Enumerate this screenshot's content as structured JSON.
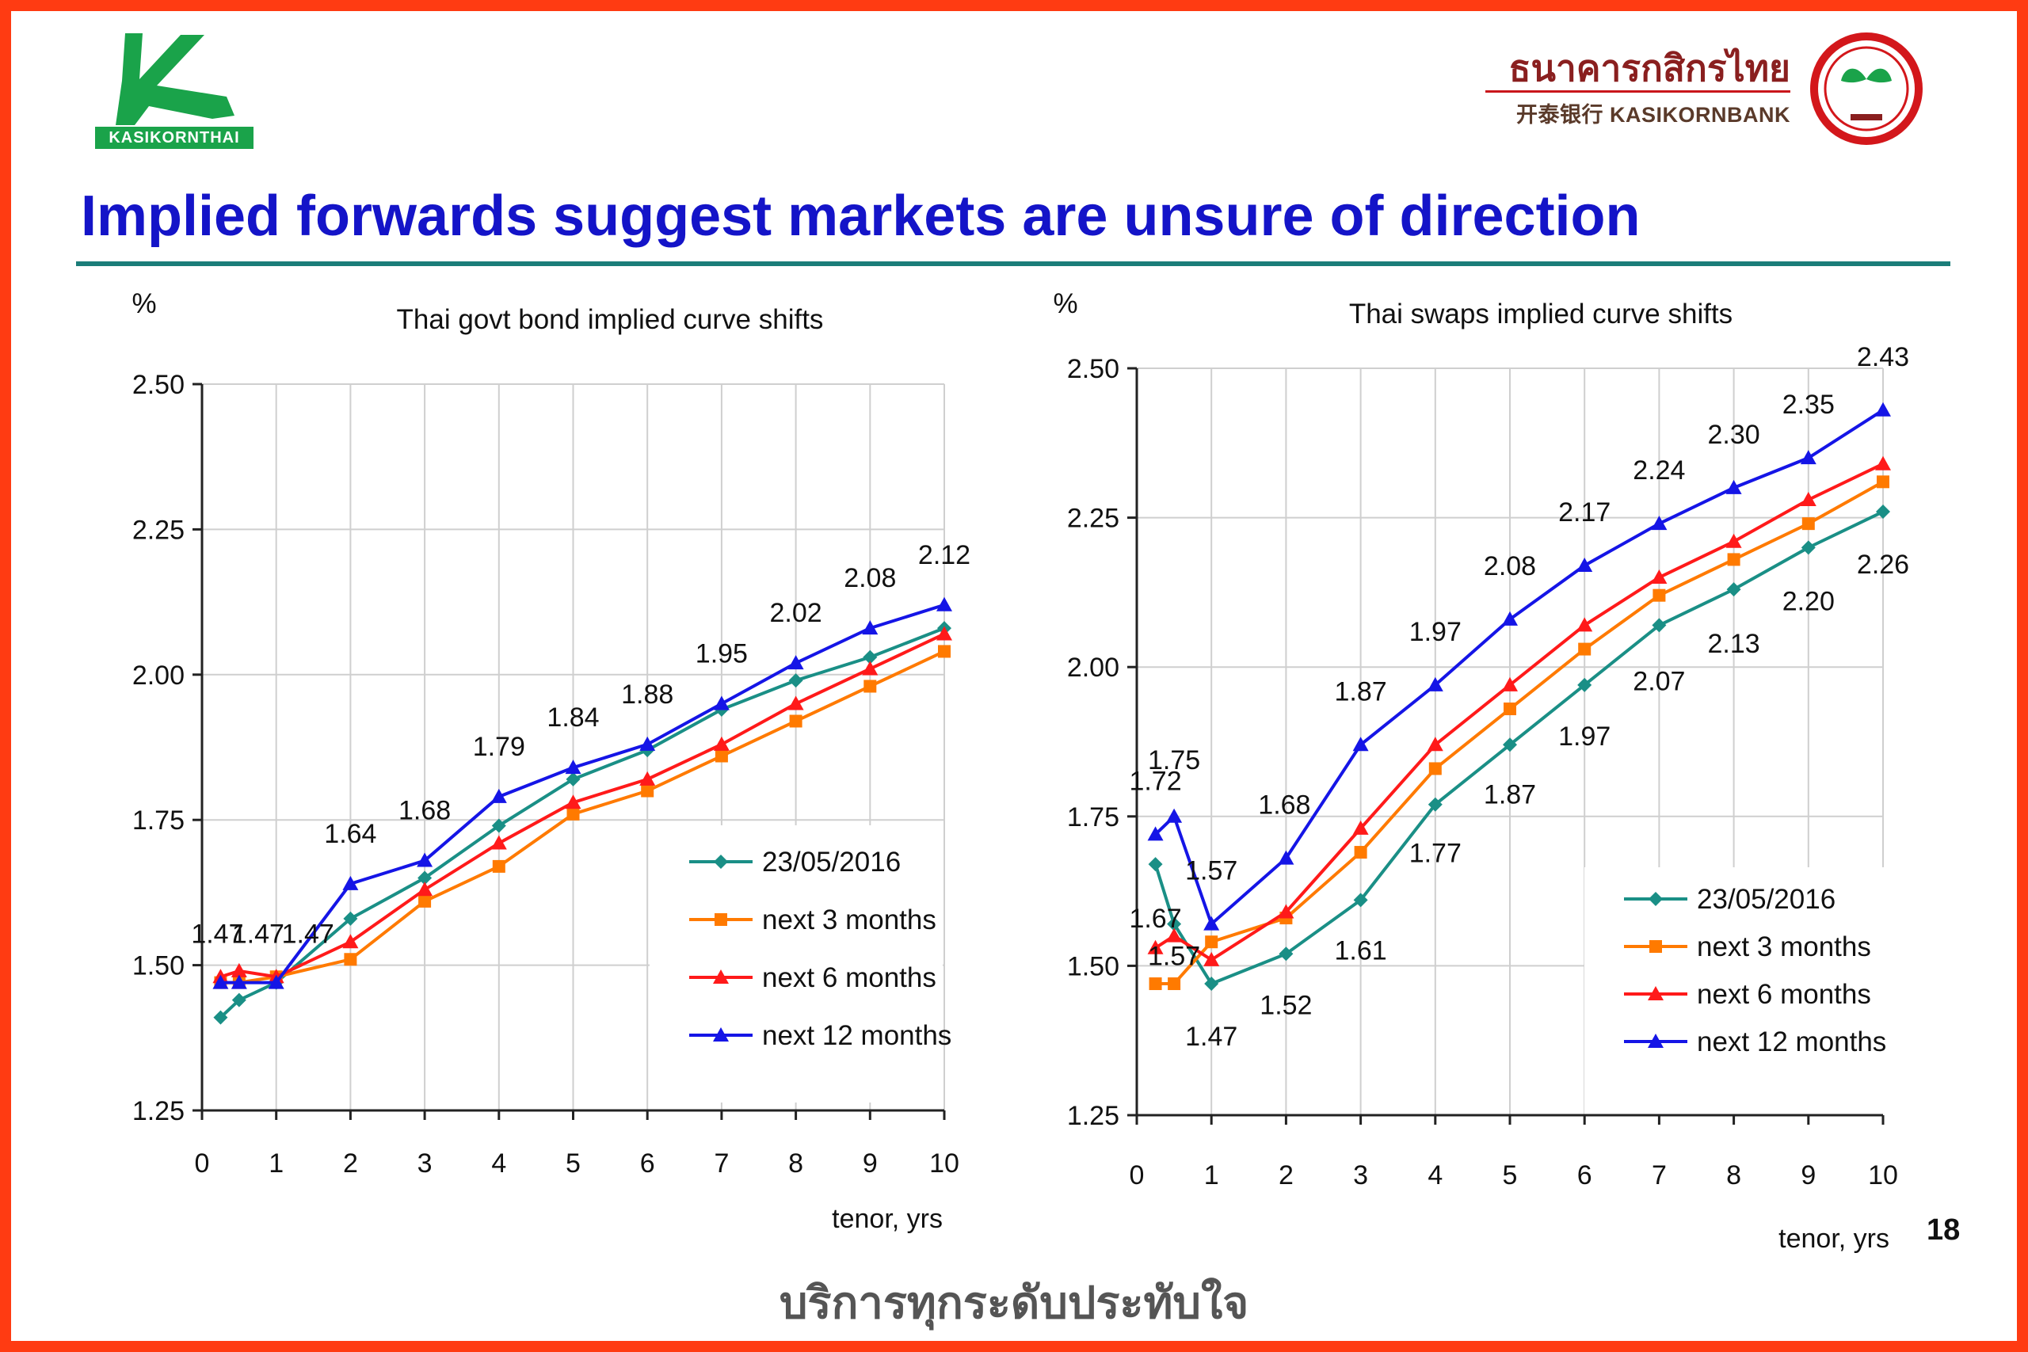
{
  "header": {
    "kt_logo_text": "KASIKORNTHAI",
    "bank_name_thai": "ธนาคารกสิกรไทย",
    "bank_name_en": "开泰银行 KASIKORNBANK",
    "title": "Implied forwards suggest markets are unsure of direction"
  },
  "footer": {
    "page_number": "18",
    "slogan": "บริการทุกระดับประทับใจ"
  },
  "colors": {
    "frame": "#ff3b12",
    "title": "#1414c8",
    "rule": "#1b7d79",
    "series": [
      "#1a8f86",
      "#ff7a00",
      "#ff1a1a",
      "#1515e6"
    ]
  },
  "chart_data": [
    {
      "type": "line",
      "title": "Thai govt bond implied curve shifts",
      "ylabel": "%",
      "xlabel": "tenor, yrs",
      "ylim": [
        1.25,
        2.5
      ],
      "xlim": [
        0,
        10
      ],
      "yticks": [
        "1.25",
        "1.50",
        "1.75",
        "2.00",
        "2.25",
        "2.50"
      ],
      "xticks": [
        "0",
        "1",
        "2",
        "3",
        "4",
        "5",
        "6",
        "7",
        "8",
        "9",
        "10"
      ],
      "grid": "vertical",
      "legend_position": "bottom-right",
      "series": [
        {
          "name": "23/05/2016",
          "marker": "diamond",
          "color": "#1a8f86",
          "x": [
            0.25,
            0.5,
            1,
            2,
            3,
            4,
            5,
            6,
            7,
            8,
            9,
            10
          ],
          "y": [
            1.41,
            1.44,
            1.47,
            1.58,
            1.65,
            1.74,
            1.82,
            1.87,
            1.94,
            1.99,
            2.03,
            2.08
          ]
        },
        {
          "name": "next 3 months",
          "marker": "square",
          "color": "#ff7a00",
          "x": [
            0.25,
            0.5,
            1,
            2,
            3,
            4,
            5,
            6,
            7,
            8,
            9,
            10
          ],
          "y": [
            1.47,
            1.47,
            1.48,
            1.51,
            1.61,
            1.67,
            1.76,
            1.8,
            1.86,
            1.92,
            1.98,
            2.04
          ]
        },
        {
          "name": "next 6 months",
          "marker": "triangle",
          "color": "#ff1a1a",
          "x": [
            0.25,
            0.5,
            1,
            2,
            3,
            4,
            5,
            6,
            7,
            8,
            9,
            10
          ],
          "y": [
            1.48,
            1.49,
            1.48,
            1.54,
            1.63,
            1.71,
            1.78,
            1.82,
            1.88,
            1.95,
            2.01,
            2.07
          ]
        },
        {
          "name": "next 12 months",
          "marker": "triangle",
          "color": "#1515e6",
          "x": [
            0.25,
            0.5,
            1,
            2,
            3,
            4,
            5,
            6,
            7,
            8,
            9,
            10
          ],
          "y": [
            1.47,
            1.47,
            1.47,
            1.64,
            1.68,
            1.79,
            1.84,
            1.88,
            1.95,
            2.02,
            2.08,
            2.12
          ]
        }
      ],
      "annotations": [
        {
          "text": "1.47",
          "series": 3,
          "point": 0
        },
        {
          "text": "1.47",
          "series": 3,
          "point": 1
        },
        {
          "text": "1.47",
          "series": 3,
          "point": 2
        },
        {
          "text": "1.64",
          "series": 3,
          "point": 3
        },
        {
          "text": "1.68",
          "series": 3,
          "point": 4
        },
        {
          "text": "1.79",
          "series": 3,
          "point": 5
        },
        {
          "text": "1.84",
          "series": 3,
          "point": 6
        },
        {
          "text": "1.88",
          "series": 3,
          "point": 7
        },
        {
          "text": "1.95",
          "series": 3,
          "point": 8
        },
        {
          "text": "2.02",
          "series": 3,
          "point": 9
        },
        {
          "text": "2.08",
          "series": 3,
          "point": 10
        },
        {
          "text": "2.12",
          "series": 3,
          "point": 11
        }
      ]
    },
    {
      "type": "line",
      "title": "Thai swaps implied curve shifts",
      "ylabel": "%",
      "xlabel": "tenor, yrs",
      "ylim": [
        1.25,
        2.5
      ],
      "xlim": [
        0,
        10
      ],
      "yticks": [
        "1.25",
        "1.50",
        "1.75",
        "2.00",
        "2.25",
        "2.50"
      ],
      "xticks": [
        "0",
        "1",
        "2",
        "3",
        "4",
        "5",
        "6",
        "7",
        "8",
        "9",
        "10"
      ],
      "grid": "vertical",
      "legend_position": "bottom-right",
      "series": [
        {
          "name": "23/05/2016",
          "marker": "diamond",
          "color": "#1a8f86",
          "x": [
            0.25,
            0.5,
            1,
            2,
            3,
            4,
            5,
            6,
            7,
            8,
            9,
            10
          ],
          "y": [
            1.67,
            1.57,
            1.47,
            1.52,
            1.61,
            1.77,
            1.87,
            1.97,
            2.07,
            2.13,
            2.2,
            2.26
          ]
        },
        {
          "name": "next 3 months",
          "marker": "square",
          "color": "#ff7a00",
          "x": [
            0.25,
            0.5,
            1,
            2,
            3,
            4,
            5,
            6,
            7,
            8,
            9,
            10
          ],
          "y": [
            1.47,
            1.47,
            1.54,
            1.58,
            1.69,
            1.83,
            1.93,
            2.03,
            2.12,
            2.18,
            2.24,
            2.31
          ]
        },
        {
          "name": "next 6 months",
          "marker": "triangle",
          "color": "#ff1a1a",
          "x": [
            0.25,
            0.5,
            1,
            2,
            3,
            4,
            5,
            6,
            7,
            8,
            9,
            10
          ],
          "y": [
            1.53,
            1.55,
            1.51,
            1.59,
            1.73,
            1.87,
            1.97,
            2.07,
            2.15,
            2.21,
            2.28,
            2.34
          ]
        },
        {
          "name": "next 12 months",
          "marker": "triangle",
          "color": "#1515e6",
          "x": [
            0.25,
            0.5,
            1,
            2,
            3,
            4,
            5,
            6,
            7,
            8,
            9,
            10
          ],
          "y": [
            1.72,
            1.75,
            1.57,
            1.68,
            1.87,
            1.97,
            2.08,
            2.17,
            2.24,
            2.3,
            2.35,
            2.43
          ]
        }
      ],
      "annotations": [
        {
          "text": "1.72",
          "series": 3,
          "point": 0
        },
        {
          "text": "1.75",
          "series": 3,
          "point": 1
        },
        {
          "text": "1.57",
          "series": 3,
          "point": 2
        },
        {
          "text": "1.68",
          "series": 3,
          "point": 3
        },
        {
          "text": "1.87",
          "series": 3,
          "point": 4
        },
        {
          "text": "1.97",
          "series": 3,
          "point": 5
        },
        {
          "text": "2.08",
          "series": 3,
          "point": 6
        },
        {
          "text": "2.17",
          "series": 3,
          "point": 7
        },
        {
          "text": "2.24",
          "series": 3,
          "point": 8
        },
        {
          "text": "2.30",
          "series": 3,
          "point": 9
        },
        {
          "text": "2.35",
          "series": 3,
          "point": 10
        },
        {
          "text": "2.43",
          "series": 3,
          "point": 11
        },
        {
          "text": "1.67",
          "series": 0,
          "point": 0
        },
        {
          "text": "1.57",
          "series": 0,
          "point": 1
        },
        {
          "text": "1.47",
          "series": 0,
          "point": 2
        },
        {
          "text": "1.52",
          "series": 0,
          "point": 3
        },
        {
          "text": "1.61",
          "series": 0,
          "point": 4
        },
        {
          "text": "1.77",
          "series": 0,
          "point": 5
        },
        {
          "text": "1.87",
          "series": 0,
          "point": 6
        },
        {
          "text": "1.97",
          "series": 0,
          "point": 7
        },
        {
          "text": "2.07",
          "series": 0,
          "point": 8
        },
        {
          "text": "2.13",
          "series": 0,
          "point": 9
        },
        {
          "text": "2.20",
          "series": 0,
          "point": 10
        },
        {
          "text": "2.26",
          "series": 0,
          "point": 11
        }
      ]
    }
  ]
}
